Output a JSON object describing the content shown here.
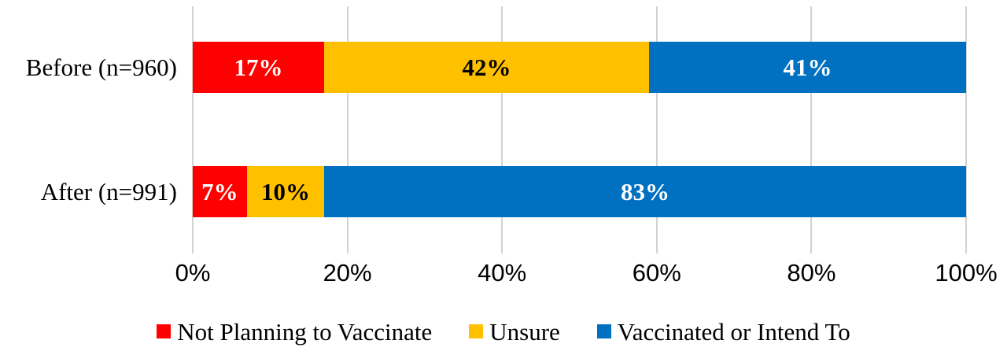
{
  "chart_data": {
    "type": "bar",
    "orientation": "horizontal",
    "stacked": true,
    "title": "",
    "xlabel": "",
    "ylabel": "",
    "categories": [
      "Before (n=960)",
      "After (n=991)"
    ],
    "series": [
      {
        "name": "Not Planning to Vaccinate",
        "color": "#FF0000",
        "label_color": "#FFFFFF",
        "values": [
          17,
          7
        ],
        "labels": [
          "17%",
          "7%"
        ]
      },
      {
        "name": "Unsure",
        "color": "#FFC000",
        "label_color": "#000000",
        "values": [
          42,
          10
        ],
        "labels": [
          "42%",
          "10%"
        ]
      },
      {
        "name": "Vaccinated or Intend To",
        "color": "#0070C0",
        "label_color": "#FFFFFF",
        "values": [
          41,
          83
        ],
        "labels": [
          "41%",
          "83%"
        ]
      }
    ],
    "x_ticks": [
      "0%",
      "20%",
      "40%",
      "60%",
      "80%",
      "100%"
    ],
    "xlim": [
      0,
      100
    ],
    "grid": true,
    "gridline_color": "#D2D2D2",
    "legend_position": "bottom"
  }
}
